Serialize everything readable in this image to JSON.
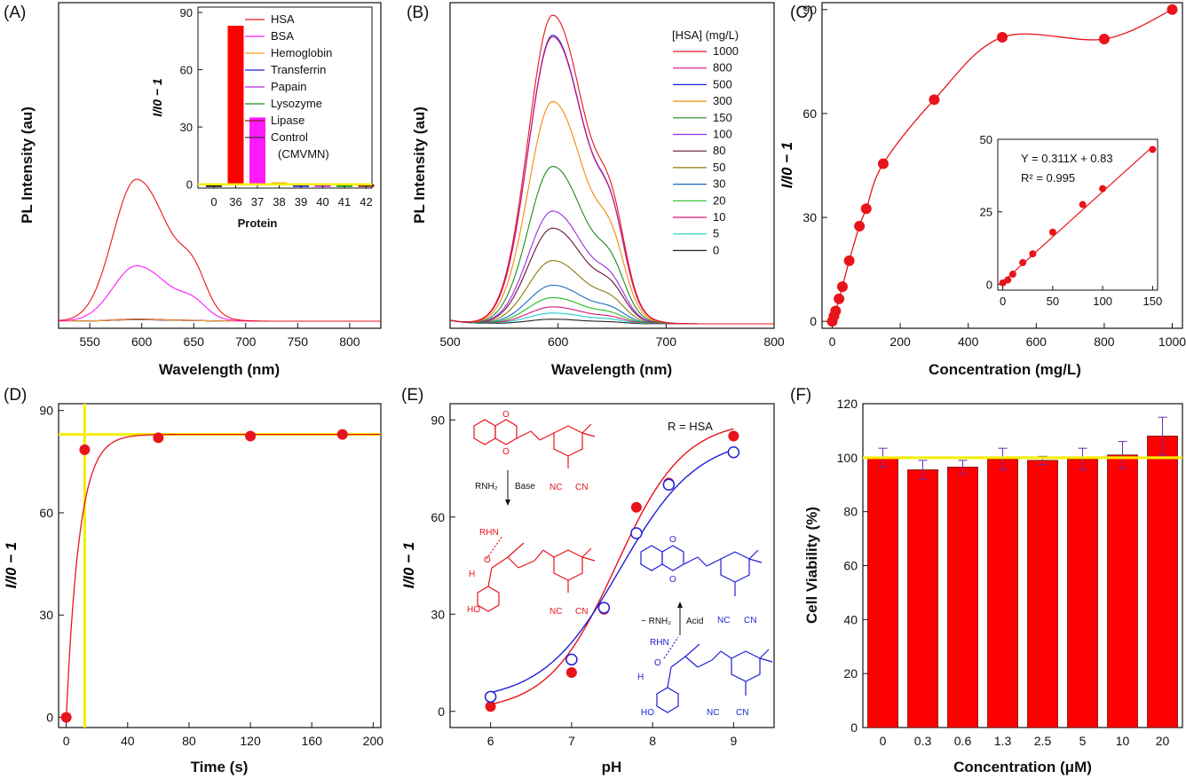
{
  "panels": {
    "a": {
      "letter": "(A)",
      "xlabel": "Wavelength (nm)",
      "ylabel": "PL Intensity (au)",
      "inset_xlabel": "Protein",
      "inset_ylabel": "I/I0 − 1",
      "legend": [
        "HSA",
        "BSA",
        "Hemoglobin",
        "Transferrin",
        "Papain",
        "Lysozyme",
        "Lipase",
        "Control",
        "(CMVMN)"
      ]
    },
    "b": {
      "letter": "(B)",
      "xlabel": "Wavelength (nm)",
      "ylabel": "PL Intensity (au)",
      "legend_title": "[HSA] (mg/L)"
    },
    "c": {
      "letter": "(C)",
      "xlabel": "Concentration (mg/L)",
      "ylabel": "I/I0 − 1",
      "fit_eq": "Y = 0.311X + 0.83",
      "fit_r2": "R² = 0.995"
    },
    "d": {
      "letter": "(D)",
      "xlabel": "Time (s)",
      "ylabel": "I/I0 − 1"
    },
    "e": {
      "letter": "(E)",
      "xlabel": "pH",
      "ylabel": "I/I0 − 1",
      "note": "R = HSA",
      "scheme": {
        "rnh2": "RNH₂",
        "base": "Base",
        "acid": "Acid",
        "minus_rnh2": "− RNH₂",
        "rhn": "RHN",
        "nc": "NC",
        "cn": "CN",
        "o": "O",
        "ho": "HO",
        "h": "H"
      }
    },
    "f": {
      "letter": "(F)",
      "xlabel": "Concentration (μM)",
      "ylabel": "Cell Viability (%)"
    }
  },
  "colors": {
    "red": "#e8141b",
    "yellow": "#f4ee00",
    "blue": "#1f1fd6",
    "magenta": "#ff19ff"
  },
  "chart_data": [
    {
      "id": "a",
      "type": "line",
      "title": "",
      "xlabel": "Wavelength (nm)",
      "ylabel": "PL Intensity (au)",
      "xlim": [
        520,
        830
      ],
      "xticks": [
        550,
        600,
        650,
        700,
        750,
        800
      ],
      "series": [
        {
          "name": "HSA",
          "color": "#e8141b",
          "peak_x": 595,
          "peak": 1.0
        },
        {
          "name": "BSA",
          "color": "#ff19ff",
          "peak_x": 595,
          "peak": 0.39
        },
        {
          "name": "Hemoglobin",
          "color": "#f59e1d",
          "peak_x": 595,
          "peak": 0.012
        },
        {
          "name": "Transferrin",
          "color": "#1f1fd6",
          "peak_x": 595,
          "peak": 0.01
        },
        {
          "name": "Papain",
          "color": "#b422d4",
          "peak_x": 595,
          "peak": 0.013
        },
        {
          "name": "Lysozyme",
          "color": "#1e8a1e",
          "peak_x": 595,
          "peak": 0.011
        },
        {
          "name": "Lipase",
          "color": "#8b1a1a",
          "peak_x": 595,
          "peak": 0.015
        },
        {
          "name": "Control (CMVMN)",
          "color": "#333333",
          "peak_x": 595,
          "peak": 0.012
        }
      ],
      "inset": {
        "type": "bar",
        "xlabel": "Protein",
        "ylabel": "I/I0 − 1",
        "ylim": [
          -2,
          90
        ],
        "yticks": [
          0,
          30,
          60,
          90
        ],
        "categories": [
          "0",
          "36",
          "37",
          "38",
          "39",
          "40",
          "41",
          "42"
        ],
        "values": [
          -1.2,
          83,
          35,
          1.0,
          -0.5,
          -0.5,
          -0.6,
          -0.4
        ],
        "colors": [
          "#111111",
          "#ff0000",
          "#ff19ff",
          "#f59e1d",
          "#1f1fd6",
          "#b422d4",
          "#1e8a1e",
          "#8b1a1a"
        ]
      }
    },
    {
      "id": "b",
      "type": "line",
      "title": "",
      "xlabel": "Wavelength (nm)",
      "ylabel": "PL Intensity (au)",
      "xlim": [
        500,
        800
      ],
      "xticks": [
        500,
        600,
        700,
        800
      ],
      "legend_title": "[HSA] (mg/L)",
      "series": [
        {
          "name": "1000",
          "color": "#e8141b",
          "peak": 1.0
        },
        {
          "name": "800",
          "color": "#d4147a",
          "peak": 0.93
        },
        {
          "name": "500",
          "color": "#1f1fd6",
          "peak": 0.935
        },
        {
          "name": "300",
          "color": "#f58a07",
          "peak": 0.72
        },
        {
          "name": "150",
          "color": "#1e8a1e",
          "peak": 0.51
        },
        {
          "name": "100",
          "color": "#9b2de0",
          "peak": 0.365
        },
        {
          "name": "80",
          "color": "#6b0f3d",
          "peak": 0.31
        },
        {
          "name": "50",
          "color": "#8a7a10",
          "peak": 0.205
        },
        {
          "name": "30",
          "color": "#1f6ab8",
          "peak": 0.125
        },
        {
          "name": "20",
          "color": "#22bb22",
          "peak": 0.085
        },
        {
          "name": "10",
          "color": "#d4147a",
          "peak": 0.055
        },
        {
          "name": "5",
          "color": "#22cccc",
          "peak": 0.035
        },
        {
          "name": "0",
          "color": "#222222",
          "peak": 0.015
        }
      ]
    },
    {
      "id": "c",
      "type": "scatter",
      "title": "",
      "xlabel": "Concentration (mg/L)",
      "ylabel": "I/I0 − 1",
      "xlim": [
        -30,
        1030
      ],
      "ylim": [
        -2,
        92
      ],
      "xticks": [
        0,
        200,
        400,
        600,
        800,
        1000
      ],
      "yticks": [
        0,
        30,
        60,
        90
      ],
      "points": [
        [
          0,
          0
        ],
        [
          5,
          1.5
        ],
        [
          10,
          3
        ],
        [
          20,
          6.5
        ],
        [
          30,
          10
        ],
        [
          50,
          17.5
        ],
        [
          80,
          27.5
        ],
        [
          100,
          32.5
        ],
        [
          150,
          45.5
        ],
        [
          300,
          64
        ],
        [
          500,
          82
        ],
        [
          800,
          81.5
        ],
        [
          1000,
          90
        ]
      ],
      "inset": {
        "xlim": [
          -5,
          155
        ],
        "ylim": [
          -2,
          50
        ],
        "xticks": [
          0,
          50,
          100,
          150
        ],
        "yticks": [
          0,
          25,
          50
        ],
        "points": [
          [
            0,
            0.5
          ],
          [
            5,
            1.5
          ],
          [
            10,
            3.5
          ],
          [
            20,
            7.5
          ],
          [
            30,
            10.5
          ],
          [
            50,
            18
          ],
          [
            80,
            27.5
          ],
          [
            100,
            33
          ],
          [
            150,
            46.5
          ]
        ],
        "fit": {
          "slope": 0.311,
          "intercept": 0.83
        }
      }
    },
    {
      "id": "d",
      "type": "scatter",
      "title": "",
      "xlabel": "Time (s)",
      "ylabel": "I/I0 − 1",
      "xlim": [
        -5,
        205
      ],
      "ylim": [
        -3,
        92
      ],
      "xticks": [
        0,
        40,
        80,
        120,
        160,
        200
      ],
      "yticks": [
        0,
        30,
        60,
        90
      ],
      "points": [
        [
          0,
          0
        ],
        [
          12,
          78.5
        ],
        [
          60,
          82
        ],
        [
          120,
          82.5
        ],
        [
          180,
          83
        ]
      ],
      "guides": {
        "vertical_x": 12,
        "horizontal_y": 83
      }
    },
    {
      "id": "e",
      "type": "line",
      "title": "",
      "xlabel": "pH",
      "ylabel": "I/I0 − 1",
      "xlim": [
        5.5,
        9.5
      ],
      "ylim": [
        -5,
        95
      ],
      "xticks": [
        6,
        7,
        8,
        9
      ],
      "yticks": [
        0,
        30,
        60,
        90
      ],
      "series": [
        {
          "color": "#e8141b",
          "marker": "filled",
          "x": [
            6,
            7,
            7.4,
            7.8,
            8.2,
            9
          ],
          "values": [
            1.5,
            12,
            31.5,
            63,
            70.5,
            85
          ]
        },
        {
          "color": "#1f1fd6",
          "marker": "open",
          "x": [
            6,
            7,
            7.4,
            7.8,
            8.2,
            9
          ],
          "values": [
            4.5,
            16,
            32,
            55,
            70,
            80
          ]
        }
      ]
    },
    {
      "id": "f",
      "type": "bar",
      "title": "",
      "xlabel": "Concentration (μM)",
      "ylabel": "Cell Viability (%)",
      "ylim": [
        0,
        120
      ],
      "yticks": [
        0,
        20,
        40,
        60,
        80,
        100,
        120
      ],
      "categories": [
        "0",
        "0.3",
        "0.6",
        "1.3",
        "2.5",
        "5",
        "10",
        "20"
      ],
      "values": [
        100,
        95.5,
        96.5,
        99.5,
        99,
        99.5,
        101,
        108
      ],
      "errors": [
        3.5,
        3.5,
        2.5,
        4,
        1.5,
        4,
        5,
        7
      ],
      "reference_y": 100
    }
  ]
}
